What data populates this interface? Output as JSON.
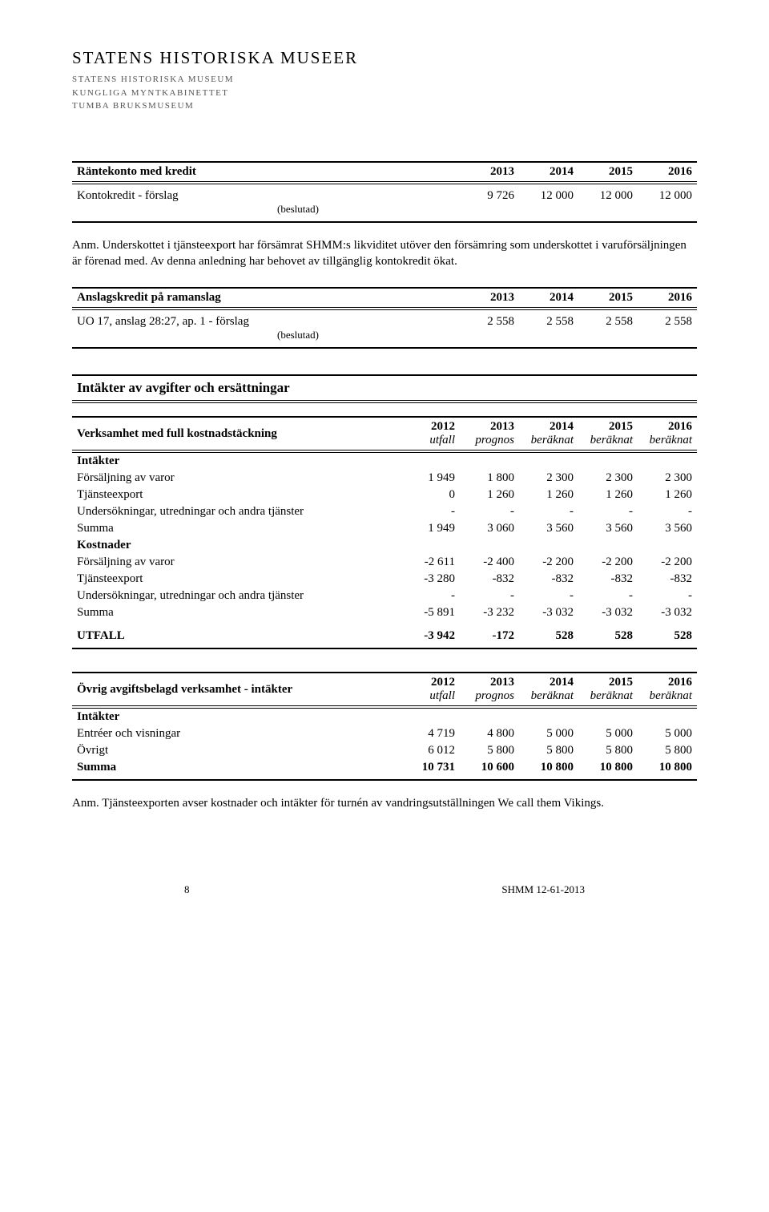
{
  "letterhead": {
    "main": "STATENS HISTORISKA MUSEER",
    "sub1": "STATENS HISTORISKA MUSEUM",
    "sub2": "KUNGLIGA MYNTKABINETTET",
    "sub3": "TUMBA BRUKSMUSEUM"
  },
  "table1": {
    "title": "Räntekonto med kredit",
    "years": [
      "2013",
      "2014",
      "2015",
      "2016"
    ],
    "row_label": "Kontokredit - förslag",
    "row_sub": "(beslutad)",
    "vals": [
      "9 726",
      "12 000",
      "12 000",
      "12 000"
    ]
  },
  "note1": "Anm. Underskottet i tjänsteexport har försämrat SHMM:s likviditet utöver den försämring som underskottet i varuförsäljningen är förenad med. Av denna anledning har behovet av tillgänglig kontokredit ökat.",
  "table2": {
    "title": "Anslagskredit på ramanslag",
    "years": [
      "2013",
      "2014",
      "2015",
      "2016"
    ],
    "row_label": "UO 17, anslag 28:27, ap. 1 - förslag",
    "row_sub": "(beslutad)",
    "vals": [
      "2 558",
      "2 558",
      "2 558",
      "2 558"
    ]
  },
  "section_title": "Intäkter av avgifter och ersättningar",
  "table3": {
    "head_label": "Verksamhet med full kostnadstäckning",
    "years": [
      "2012",
      "2013",
      "2014",
      "2015",
      "2016"
    ],
    "sublabels": [
      "utfall",
      "prognos",
      "beräknat",
      "beräknat",
      "beräknat"
    ],
    "rows": [
      {
        "label": "Intäkter",
        "bold": true
      },
      {
        "label": "Försäljning av varor",
        "vals": [
          "1 949",
          "1 800",
          "2 300",
          "2 300",
          "2 300"
        ]
      },
      {
        "label": "Tjänsteexport",
        "vals": [
          "0",
          "1 260",
          "1 260",
          "1 260",
          "1 260"
        ]
      },
      {
        "label": "Undersökningar, utredningar och andra tjänster",
        "vals": [
          "-",
          "-",
          "-",
          "-",
          "-"
        ]
      },
      {
        "label": "Summa",
        "vals": [
          "1 949",
          "3 060",
          "3 560",
          "3 560",
          "3 560"
        ]
      },
      {
        "label": "Kostnader",
        "bold": true
      },
      {
        "label": "Försäljning av varor",
        "vals": [
          "-2 611",
          "-2 400",
          "-2 200",
          "-2 200",
          "-2 200"
        ]
      },
      {
        "label": "Tjänsteexport",
        "vals": [
          "-3 280",
          "-832",
          "-832",
          "-832",
          "-832"
        ]
      },
      {
        "label": "Undersökningar, utredningar och andra tjänster",
        "vals": [
          "-",
          "-",
          "-",
          "-",
          "-"
        ]
      },
      {
        "label": "Summa",
        "vals": [
          "-5 891",
          "-3 232",
          "-3 032",
          "-3 032",
          "-3 032"
        ]
      }
    ],
    "outcome_label": "UTFALL",
    "outcome_vals": [
      "-3 942",
      "-172",
      "528",
      "528",
      "528"
    ]
  },
  "table4": {
    "head_label": "Övrig avgiftsbelagd verksamhet - intäkter",
    "years": [
      "2012",
      "2013",
      "2014",
      "2015",
      "2016"
    ],
    "sublabels": [
      "utfall",
      "prognos",
      "beräknat",
      "beräknat",
      "beräknat"
    ],
    "rows": [
      {
        "label": "Intäkter",
        "bold": true
      },
      {
        "label": "Entréer och visningar",
        "vals": [
          "4 719",
          "4 800",
          "5 000",
          "5 000",
          "5 000"
        ]
      },
      {
        "label": "Övrigt",
        "vals": [
          "6 012",
          "5 800",
          "5 800",
          "5 800",
          "5 800"
        ]
      },
      {
        "label": "Summa",
        "bold": true,
        "vals": [
          "10 731",
          "10 600",
          "10 800",
          "10 800",
          "10 800"
        ]
      }
    ]
  },
  "note2": "Anm. Tjänsteexporten avser kostnader och intäkter för turnén av vandringsutställningen We call them Vikings.",
  "footer": {
    "page": "8",
    "ref": "SHMM 12-61-2013"
  }
}
